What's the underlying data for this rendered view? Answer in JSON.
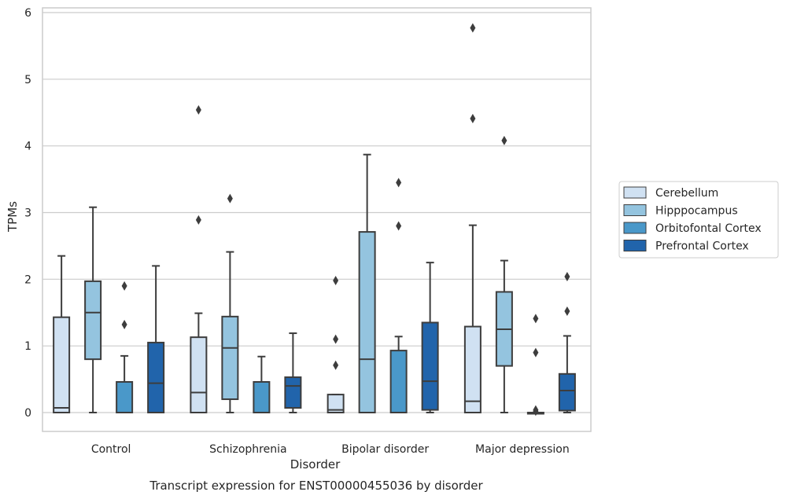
{
  "chart_data": {
    "type": "boxplot",
    "title": "",
    "caption": "Transcript expression for ENST00000455036 by disorder",
    "xlabel": "Disorder",
    "ylabel": "TPMs",
    "ylim": [
      -0.27,
      6.06
    ],
    "yticks": [
      0,
      1,
      2,
      3,
      4,
      5,
      6
    ],
    "grid": "horizontal",
    "legend_position": "right",
    "categories": [
      "Control",
      "Schizophrenia",
      "Bipolar disorder",
      "Major depression"
    ],
    "series": [
      {
        "name": "Cerebellum",
        "color": "#d0e1f2",
        "boxes": [
          {
            "whisker_low": 0.0,
            "q1": 0.0,
            "median": 0.07,
            "q3": 1.43,
            "whisker_high": 2.35,
            "outliers": []
          },
          {
            "whisker_low": 0.0,
            "q1": 0.0,
            "median": 0.3,
            "q3": 1.13,
            "whisker_high": 1.49,
            "outliers": [
              2.89,
              4.54
            ]
          },
          {
            "whisker_low": 0.0,
            "q1": 0.0,
            "median": 0.04,
            "q3": 0.27,
            "whisker_high": 0.27,
            "outliers": [
              0.71,
              1.1,
              1.98
            ]
          },
          {
            "whisker_low": 0.0,
            "q1": 0.0,
            "median": 0.17,
            "q3": 1.29,
            "whisker_high": 2.81,
            "outliers": [
              4.41,
              5.77
            ]
          }
        ]
      },
      {
        "name": "Hipppocampus",
        "color": "#94c4df",
        "boxes": [
          {
            "whisker_low": 0.0,
            "q1": 0.8,
            "median": 1.5,
            "q3": 1.97,
            "whisker_high": 3.08,
            "outliers": []
          },
          {
            "whisker_low": 0.0,
            "q1": 0.2,
            "median": 0.97,
            "q3": 1.44,
            "whisker_high": 2.41,
            "outliers": [
              3.21
            ]
          },
          {
            "whisker_low": 0.0,
            "q1": 0.0,
            "median": 0.8,
            "q3": 2.71,
            "whisker_high": 3.87,
            "outliers": []
          },
          {
            "whisker_low": 0.0,
            "q1": 0.7,
            "median": 1.25,
            "q3": 1.81,
            "whisker_high": 2.28,
            "outliers": [
              4.08
            ]
          }
        ]
      },
      {
        "name": "Orbitofontal Cortex",
        "color": "#4a98c9",
        "boxes": [
          {
            "whisker_low": 0.0,
            "q1": 0.0,
            "median": 0.0,
            "q3": 0.46,
            "whisker_high": 0.85,
            "outliers": [
              1.32,
              1.9
            ]
          },
          {
            "whisker_low": 0.0,
            "q1": 0.0,
            "median": 0.0,
            "q3": 0.46,
            "whisker_high": 0.84,
            "outliers": []
          },
          {
            "whisker_low": 0.0,
            "q1": 0.0,
            "median": 0.0,
            "q3": 0.93,
            "whisker_high": 1.14,
            "outliers": [
              2.8,
              3.45
            ]
          },
          {
            "whisker_low": 0.0,
            "q1": 0.0,
            "median": 0.0,
            "q3": 0.0,
            "whisker_high": 0.0,
            "outliers": [
              0.02,
              0.04,
              0.9,
              1.41
            ]
          }
        ]
      },
      {
        "name": "Prefrontal Cortex",
        "color": "#2164ab",
        "boxes": [
          {
            "whisker_low": 0.0,
            "q1": 0.0,
            "median": 0.44,
            "q3": 1.05,
            "whisker_high": 2.2,
            "outliers": []
          },
          {
            "whisker_low": 0.0,
            "q1": 0.07,
            "median": 0.4,
            "q3": 0.53,
            "whisker_high": 1.19,
            "outliers": []
          },
          {
            "whisker_low": 0.0,
            "q1": 0.04,
            "median": 0.47,
            "q3": 1.35,
            "whisker_high": 2.25,
            "outliers": []
          },
          {
            "whisker_low": 0.0,
            "q1": 0.03,
            "median": 0.33,
            "q3": 0.58,
            "whisker_high": 1.15,
            "outliers": [
              1.52,
              2.04
            ]
          }
        ]
      }
    ]
  }
}
